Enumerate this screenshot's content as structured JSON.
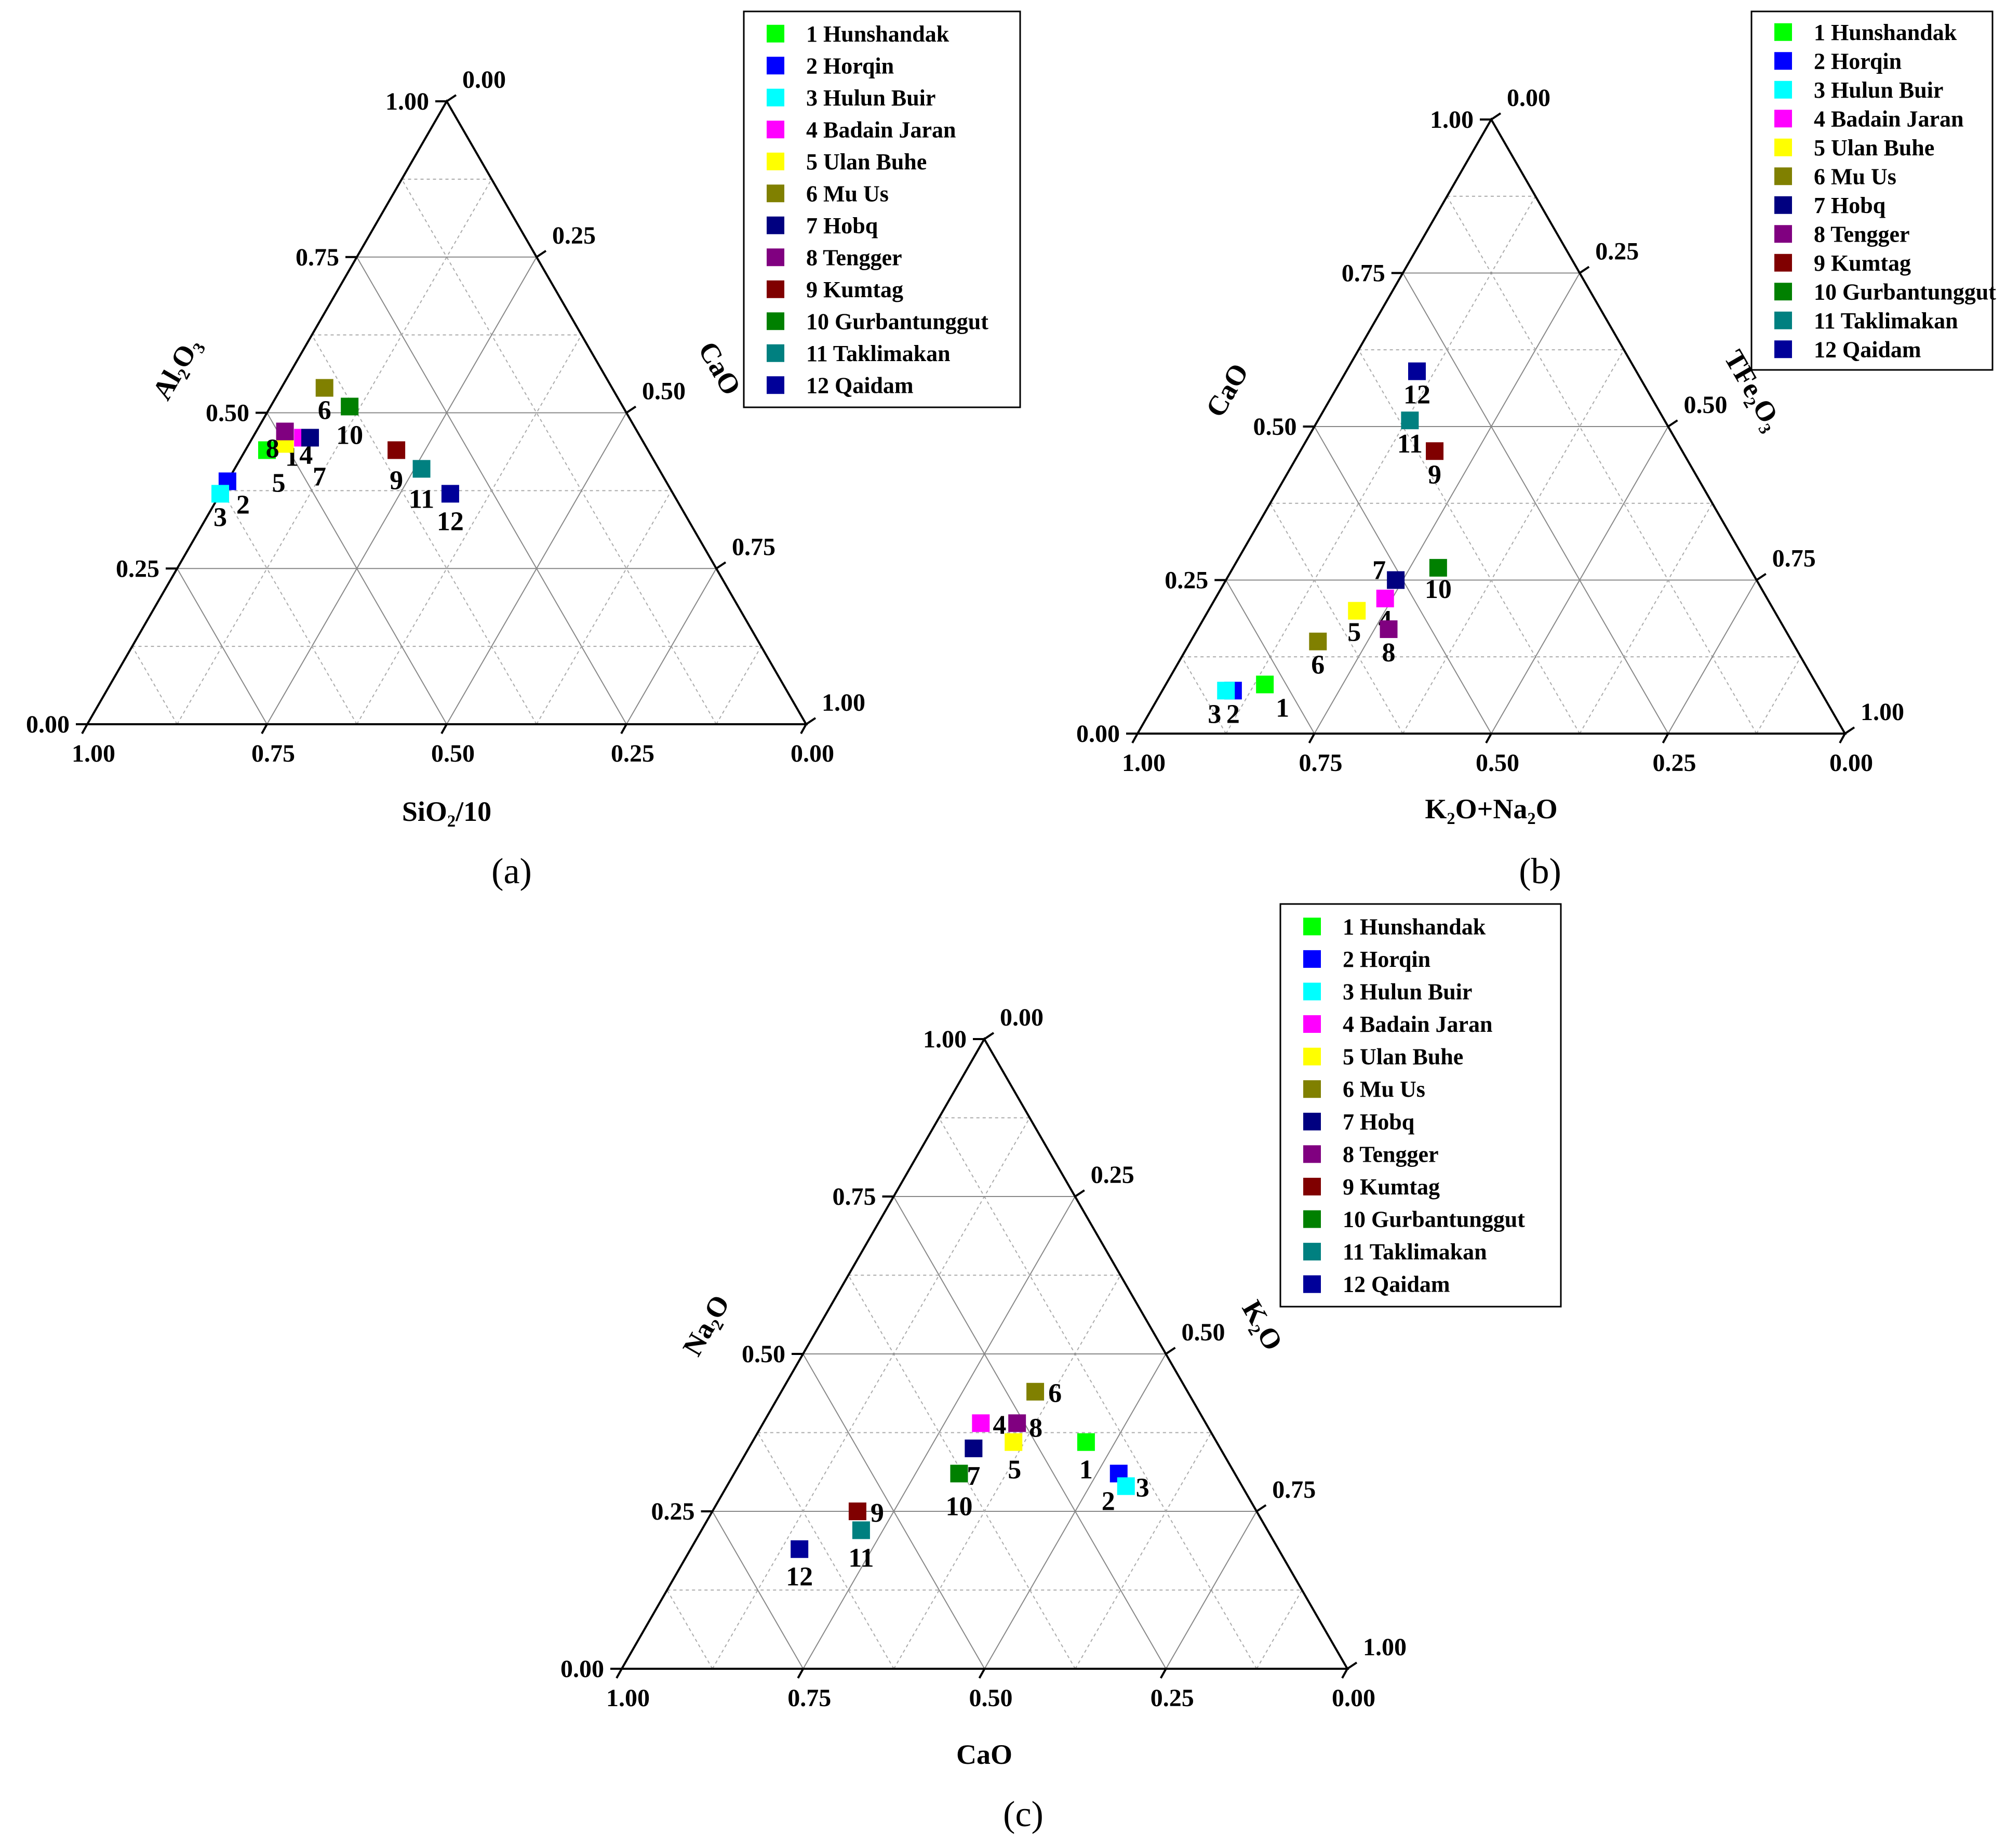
{
  "legend_entries": [
    {
      "label": "1 Hunshandak",
      "color": "#00ff00"
    },
    {
      "label": "2 Horqin",
      "color": "#0000ff"
    },
    {
      "label": "3 Hulun Buir",
      "color": "#00ffff"
    },
    {
      "label": "4 Badain Jaran",
      "color": "#ff00ff"
    },
    {
      "label": "5 Ulan Buhe",
      "color": "#ffff00"
    },
    {
      "label": "6 Mu Us",
      "color": "#808000"
    },
    {
      "label": "7 Hobq",
      "color": "#000080"
    },
    {
      "label": "8 Tengger",
      "color": "#800080"
    },
    {
      "label": "9 Kumtag",
      "color": "#800000"
    },
    {
      "label": "10 Gurbantunggut",
      "color": "#008000"
    },
    {
      "label": "11 Taklimakan",
      "color": "#008080"
    },
    {
      "label": "12 Qaidam",
      "color": "#000099"
    }
  ],
  "chart_data": [
    {
      "type": "ternary-scatter",
      "panel_label": "(a)",
      "axes": {
        "left": "Al₂O₃",
        "right": "CaO",
        "bottom": "SiO₂/10"
      },
      "ticks": {
        "left": [
          "0.00",
          "0.25",
          "0.50",
          "0.75",
          "1.00"
        ],
        "right": [
          "0.00",
          "0.25",
          "0.50",
          "0.75",
          "1.00"
        ],
        "bottom": [
          "1.00",
          "0.75",
          "0.50",
          "0.25",
          "0.00"
        ]
      },
      "points": [
        {
          "id": "1",
          "top": 0.44,
          "right": 0.03
        },
        {
          "id": "2",
          "top": 0.39,
          "right": 0.0
        },
        {
          "id": "3",
          "top": 0.37,
          "right": 0.0
        },
        {
          "id": "4",
          "top": 0.46,
          "right": 0.07
        },
        {
          "id": "5",
          "top": 0.45,
          "right": 0.05
        },
        {
          "id": "6",
          "top": 0.54,
          "right": 0.06
        },
        {
          "id": "7",
          "top": 0.46,
          "right": 0.08
        },
        {
          "id": "8",
          "top": 0.47,
          "right": 0.04
        },
        {
          "id": "9",
          "top": 0.44,
          "right": 0.21
        },
        {
          "id": "10",
          "top": 0.51,
          "right": 0.11
        },
        {
          "id": "11",
          "top": 0.41,
          "right": 0.26
        },
        {
          "id": "12",
          "top": 0.37,
          "right": 0.32
        }
      ]
    },
    {
      "type": "ternary-scatter",
      "panel_label": "(b)",
      "axes": {
        "left": "CaO",
        "right": "TFe₂O₃",
        "bottom": "K₂O+Na₂O"
      },
      "ticks": {
        "left": [
          "0.00",
          "0.25",
          "0.50",
          "0.75",
          "1.00"
        ],
        "right": [
          "0.00",
          "0.25",
          "0.50",
          "0.75",
          "1.00"
        ],
        "bottom": [
          "1.00",
          "0.75",
          "0.50",
          "0.25",
          "0.00"
        ]
      },
      "points": [
        {
          "id": "1",
          "top": 0.08,
          "right": 0.14
        },
        {
          "id": "2",
          "top": 0.07,
          "right": 0.1
        },
        {
          "id": "3",
          "top": 0.07,
          "right": 0.09
        },
        {
          "id": "4",
          "top": 0.22,
          "right": 0.24
        },
        {
          "id": "5",
          "top": 0.2,
          "right": 0.21
        },
        {
          "id": "6",
          "top": 0.15,
          "right": 0.18
        },
        {
          "id": "7",
          "top": 0.25,
          "right": 0.24
        },
        {
          "id": "8",
          "top": 0.17,
          "right": 0.27
        },
        {
          "id": "9",
          "top": 0.46,
          "right": 0.19
        },
        {
          "id": "10",
          "top": 0.27,
          "right": 0.29
        },
        {
          "id": "11",
          "top": 0.51,
          "right": 0.13
        },
        {
          "id": "12",
          "top": 0.59,
          "right": 0.1
        }
      ]
    },
    {
      "type": "ternary-scatter",
      "panel_label": "(c)",
      "axes": {
        "left": "Na₂O",
        "right": "K₂O",
        "bottom": "CaO"
      },
      "ticks": {
        "left": [
          "0.00",
          "0.25",
          "0.50",
          "0.75",
          "1.00"
        ],
        "right": [
          "0.00",
          "0.25",
          "0.50",
          "0.75",
          "1.00"
        ],
        "bottom": [
          "1.00",
          "0.75",
          "0.50",
          "0.25",
          "0.00"
        ]
      },
      "points": [
        {
          "id": "1",
          "top": 0.36,
          "right": 0.46
        },
        {
          "id": "2",
          "top": 0.31,
          "right": 0.53
        },
        {
          "id": "3",
          "top": 0.29,
          "right": 0.55
        },
        {
          "id": "4",
          "top": 0.39,
          "right": 0.3
        },
        {
          "id": "5",
          "top": 0.36,
          "right": 0.36
        },
        {
          "id": "6",
          "top": 0.44,
          "right": 0.35
        },
        {
          "id": "7",
          "top": 0.35,
          "right": 0.31
        },
        {
          "id": "8",
          "top": 0.39,
          "right": 0.35
        },
        {
          "id": "9",
          "top": 0.25,
          "right": 0.2
        },
        {
          "id": "10",
          "top": 0.31,
          "right": 0.31
        },
        {
          "id": "11",
          "top": 0.22,
          "right": 0.22
        },
        {
          "id": "12",
          "top": 0.19,
          "right": 0.15
        }
      ]
    }
  ]
}
